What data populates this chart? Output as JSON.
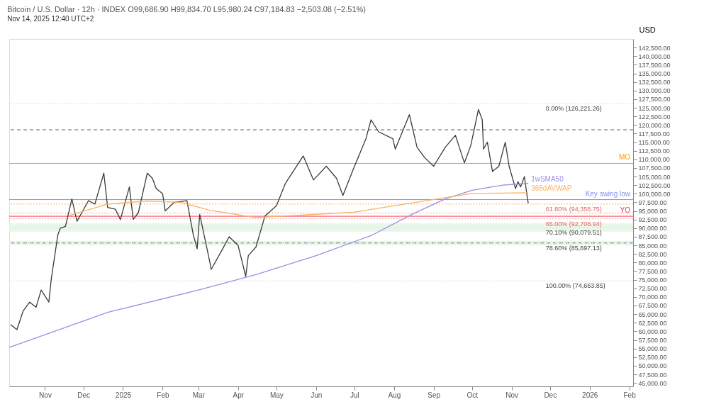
{
  "chart_data": {
    "type": "line",
    "title": "Bitcoin / U.S. Dollar · 12h · INDEX  O99,686.90  H99,834.70  L95,980.24  C97,184.83  −2,503.08 (−2.51%)",
    "subtitle": "Nov 14, 2025 12:40 UTC+2",
    "ylabel": "USD",
    "series": [
      {
        "color": "#3a3a3a",
        "x": [
          "2024-10-05",
          "2024-10-10",
          "2024-10-15",
          "2024-10-20",
          "2024-10-25",
          "2024-10-29",
          "2024-11-04",
          "2024-11-06",
          "2024-11-11",
          "2024-11-13",
          "2024-11-17",
          "2024-11-22",
          "2024-11-26",
          "2024-12-05",
          "2024-12-10",
          "2024-12-17",
          "2024-12-20",
          "2024-12-26",
          "2024-12-30",
          "2025-01-06",
          "2025-01-09",
          "2025-01-13",
          "2025-01-20",
          "2025-01-24",
          "2025-01-27",
          "2025-02-01",
          "2025-02-03",
          "2025-02-10",
          "2025-02-20",
          "2025-02-25",
          "2025-02-28",
          "2025-03-02",
          "2025-03-10",
          "2025-03-11",
          "2025-03-20",
          "2025-03-25",
          "2025-04-01",
          "2025-04-07",
          "2025-04-09",
          "2025-04-15",
          "2025-04-22",
          "2025-05-01",
          "2025-05-08",
          "2025-05-22",
          "2025-05-30",
          "2025-06-09",
          "2025-06-17",
          "2025-06-22",
          "2025-06-30",
          "2025-07-10",
          "2025-07-14",
          "2025-07-20",
          "2025-07-31",
          "2025-08-02",
          "2025-08-13",
          "2025-08-19",
          "2025-08-25",
          "2025-09-01",
          "2025-09-10",
          "2025-09-18",
          "2025-09-25",
          "2025-09-30",
          "2025-10-06",
          "2025-10-09",
          "2025-10-10",
          "2025-10-13",
          "2025-10-17",
          "2025-10-22",
          "2025-10-27",
          "2025-10-30",
          "2025-11-04",
          "2025-11-06",
          "2025-11-08",
          "2025-11-11",
          "2025-11-13",
          "2025-11-14"
        ],
        "values": [
          62000,
          60500,
          66000,
          68500,
          67000,
          72000,
          68500,
          75500,
          88000,
          90000,
          90500,
          98500,
          92000,
          98000,
          97000,
          106000,
          96000,
          95500,
          92500,
          102000,
          92500,
          94500,
          106000,
          104500,
          101500,
          100000,
          95000,
          97500,
          98000,
          88000,
          84000,
          94000,
          80000,
          78000,
          84000,
          87500,
          85000,
          76000,
          82000,
          84500,
          93500,
          96500,
          103000,
          111000,
          104000,
          108000,
          104500,
          99500,
          107000,
          116000,
          121500,
          118000,
          116000,
          113000,
          123000,
          113500,
          110500,
          108000,
          113500,
          117000,
          109000,
          114000,
          124500,
          121500,
          113000,
          115000,
          106500,
          108000,
          115000,
          108000,
          101500,
          103500,
          102000,
          105000,
          99500,
          97200
        ]
      },
      {
        "name": "1wSMA50",
        "color": "#9c8ee0",
        "x": [
          "2024-10-04",
          "2024-12-20",
          "2025-03-01",
          "2025-04-15",
          "2025-06-01",
          "2025-07-15",
          "2025-08-15",
          "2025-09-10",
          "2025-10-01",
          "2025-10-25",
          "2025-11-14"
        ],
        "values": [
          55300,
          65500,
          72000,
          76500,
          82000,
          88000,
          94000,
          98500,
          101000,
          102500,
          103000
        ]
      },
      {
        "name": "365dAVWAP",
        "color": "#f7b267",
        "x": [
          "2024-11-20",
          "2024-12-20",
          "2025-01-20",
          "2025-02-15",
          "2025-03-10",
          "2025-04-15",
          "2025-06-30",
          "2025-10-01",
          "2025-11-14"
        ],
        "values": [
          93700,
          97000,
          97900,
          97500,
          95200,
          93100,
          94600,
          100100,
          100300
        ]
      }
    ],
    "xlim": [
      "2024-10-04",
      "2026-02-04"
    ],
    "xticks": [
      {
        "value": "2024-11-01",
        "label": "Nov"
      },
      {
        "value": "2024-12-01",
        "label": "Dec"
      },
      {
        "value": "2025-01-01",
        "label": "2025"
      },
      {
        "value": "2025-02-01",
        "label": "Feb"
      },
      {
        "value": "2025-03-01",
        "label": "Mar"
      },
      {
        "value": "2025-04-01",
        "label": "Apr"
      },
      {
        "value": "2025-05-01",
        "label": "May"
      },
      {
        "value": "2025-06-01",
        "label": "Jun"
      },
      {
        "value": "2025-07-01",
        "label": "Jul"
      },
      {
        "value": "2025-08-01",
        "label": "Aug"
      },
      {
        "value": "2025-09-01",
        "label": "Sep"
      },
      {
        "value": "2025-10-01",
        "label": "Oct"
      },
      {
        "value": "2025-11-01",
        "label": "Nov"
      },
      {
        "value": "2025-12-01",
        "label": "Dec"
      },
      {
        "value": "2026-01-01",
        "label": "2026"
      },
      {
        "value": "2026-02-01",
        "label": "Feb"
      }
    ],
    "ylim": [
      44000,
      145000
    ],
    "yticks": [
      {
        "value": 45000,
        "label": "45,000.00"
      },
      {
        "value": 47500,
        "label": "47,500.00"
      },
      {
        "value": 50000,
        "label": "50,000.00"
      },
      {
        "value": 52500,
        "label": "52,500.00"
      },
      {
        "value": 55000,
        "label": "55,000.00"
      },
      {
        "value": 57500,
        "label": "57,500.00"
      },
      {
        "value": 60000,
        "label": "60,000.00"
      },
      {
        "value": 62500,
        "label": "62,500.00"
      },
      {
        "value": 65000,
        "label": "65,000.00"
      },
      {
        "value": 67500,
        "label": "67,500.00"
      },
      {
        "value": 70000,
        "label": "70,000.00"
      },
      {
        "value": 72500,
        "label": "72,500.00"
      },
      {
        "value": 75000,
        "label": "75,000.00"
      },
      {
        "value": 77500,
        "label": "77,500.00"
      },
      {
        "value": 80000,
        "label": "80,000.00"
      },
      {
        "value": 82500,
        "label": "82,500.00"
      },
      {
        "value": 85000,
        "label": "85,000.00"
      },
      {
        "value": 87500,
        "label": "87,500.00"
      },
      {
        "value": 90000,
        "label": "90,000.00"
      },
      {
        "value": 92500,
        "label": "92,500.00"
      },
      {
        "value": 95000,
        "label": "95,000.00"
      },
      {
        "value": 97500,
        "label": "97,500.00"
      },
      {
        "value": 100000,
        "label": "100,000.00"
      },
      {
        "value": 102500,
        "label": "102,500.00"
      },
      {
        "value": 105000,
        "label": "105,000.00"
      },
      {
        "value": 107500,
        "label": "107,500.00"
      },
      {
        "value": 110000,
        "label": "110,000.00"
      },
      {
        "value": 112500,
        "label": "112,500.00"
      },
      {
        "value": 115000,
        "label": "115,000.00"
      },
      {
        "value": 117500,
        "label": "117,500.00"
      },
      {
        "value": 120000,
        "label": "120,000.00"
      },
      {
        "value": 122500,
        "label": "122,500.00"
      },
      {
        "value": 125000,
        "label": "125,000.00"
      },
      {
        "value": 127500,
        "label": "127,500.00"
      },
      {
        "value": 130000,
        "label": "130,000.00"
      },
      {
        "value": 132500,
        "label": "132,500.00"
      },
      {
        "value": 135000,
        "label": "135,000.00"
      },
      {
        "value": 137500,
        "label": "137,500.00"
      },
      {
        "value": 140000,
        "label": "140,000.00"
      },
      {
        "value": 142500,
        "label": "142,500.00"
      }
    ],
    "ref_lines": [
      {
        "axis": "y",
        "value": 108838.98,
        "label": "MO",
        "color": "#ff9800",
        "line_style": "solid"
      },
      {
        "axis": "y",
        "value": 93455.85,
        "label": "YO",
        "color": "#f23645",
        "line_style": "solid"
      },
      {
        "axis": "y",
        "value": 98300,
        "label": "Key swing low",
        "color": "#7f8ff5",
        "line_style": "solid"
      },
      {
        "axis": "y",
        "value": 118600,
        "label": null,
        "color": "#555555",
        "line_style": "dashed"
      },
      {
        "axis": "y",
        "value": 85697.13,
        "label": null,
        "color": "#555555",
        "line_style": "dashed"
      },
      {
        "axis": "y",
        "value": 97000,
        "label": null,
        "color": "#f7b267",
        "line_style": "dotted"
      },
      {
        "axis": "y",
        "value": 126221.26,
        "label": "0.00% (126,221.26)",
        "color": "#dddddd",
        "line_style": "dotted"
      },
      {
        "axis": "y",
        "value": 94358.75,
        "label": "61.80% (94,358.75)",
        "color": "#f5a3a3",
        "line_style": "dotted"
      },
      {
        "axis": "y",
        "value": 92708.94,
        "label": "65.00% (92,708.94)",
        "color": "#f5a3a3",
        "line_style": "dotted"
      },
      {
        "axis": "y",
        "value": 90079.51,
        "label": "70.10% (90,079.51)",
        "color": "#cfe3cf",
        "line_style": "dotted"
      },
      {
        "axis": "y",
        "value": 85697.13,
        "label": "78.60% (85,697.13)",
        "color": "#cfe3cf",
        "line_style": "dotted"
      },
      {
        "axis": "y",
        "value": 74663.85,
        "label": "100.00% (74,663.85)",
        "color": "#dddddd",
        "line_style": "dotted"
      }
    ],
    "bands": [
      {
        "axis": "y",
        "from": 89000,
        "to": 91400,
        "label": null,
        "color": "#e3f4e3"
      },
      {
        "axis": "y",
        "from": 85000,
        "to": 86300,
        "label": null,
        "color": "#e3f4e3"
      }
    ],
    "grid": false,
    "legend": false,
    "marker": "none",
    "line_style": "solid"
  }
}
